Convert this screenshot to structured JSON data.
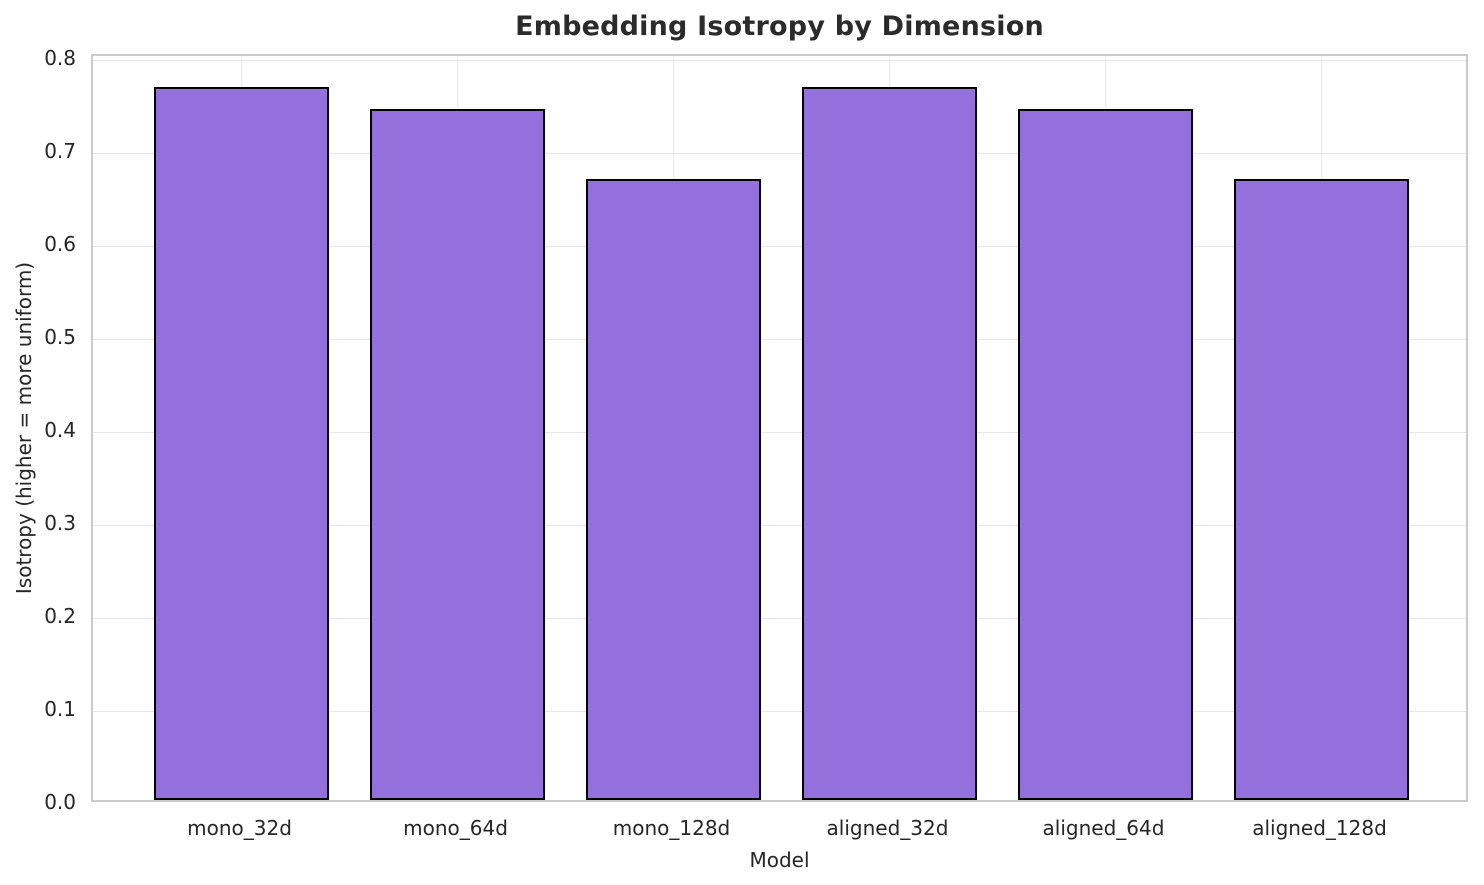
{
  "chart_data": {
    "type": "bar",
    "title": "Embedding Isotropy by Dimension",
    "xlabel": "Model",
    "ylabel": "Isotropy (higher = more uniform)",
    "categories": [
      "mono_32d",
      "mono_64d",
      "mono_128d",
      "aligned_32d",
      "aligned_64d",
      "aligned_128d"
    ],
    "values": [
      0.766,
      0.743,
      0.667,
      0.766,
      0.743,
      0.667
    ],
    "yticks": [
      0.0,
      0.1,
      0.2,
      0.3,
      0.4,
      0.5,
      0.6,
      0.7,
      0.8
    ],
    "ylim": [
      0,
      0.804
    ],
    "grid": true,
    "legend": "none",
    "colors": {
      "bar_fill": "#9370DB",
      "bar_edge": "#000000",
      "gridline": "#e7e7e7",
      "spine": "#cbcbcb",
      "text": "#262626",
      "title": "#2b2b2b",
      "background": "#ffffff"
    }
  }
}
